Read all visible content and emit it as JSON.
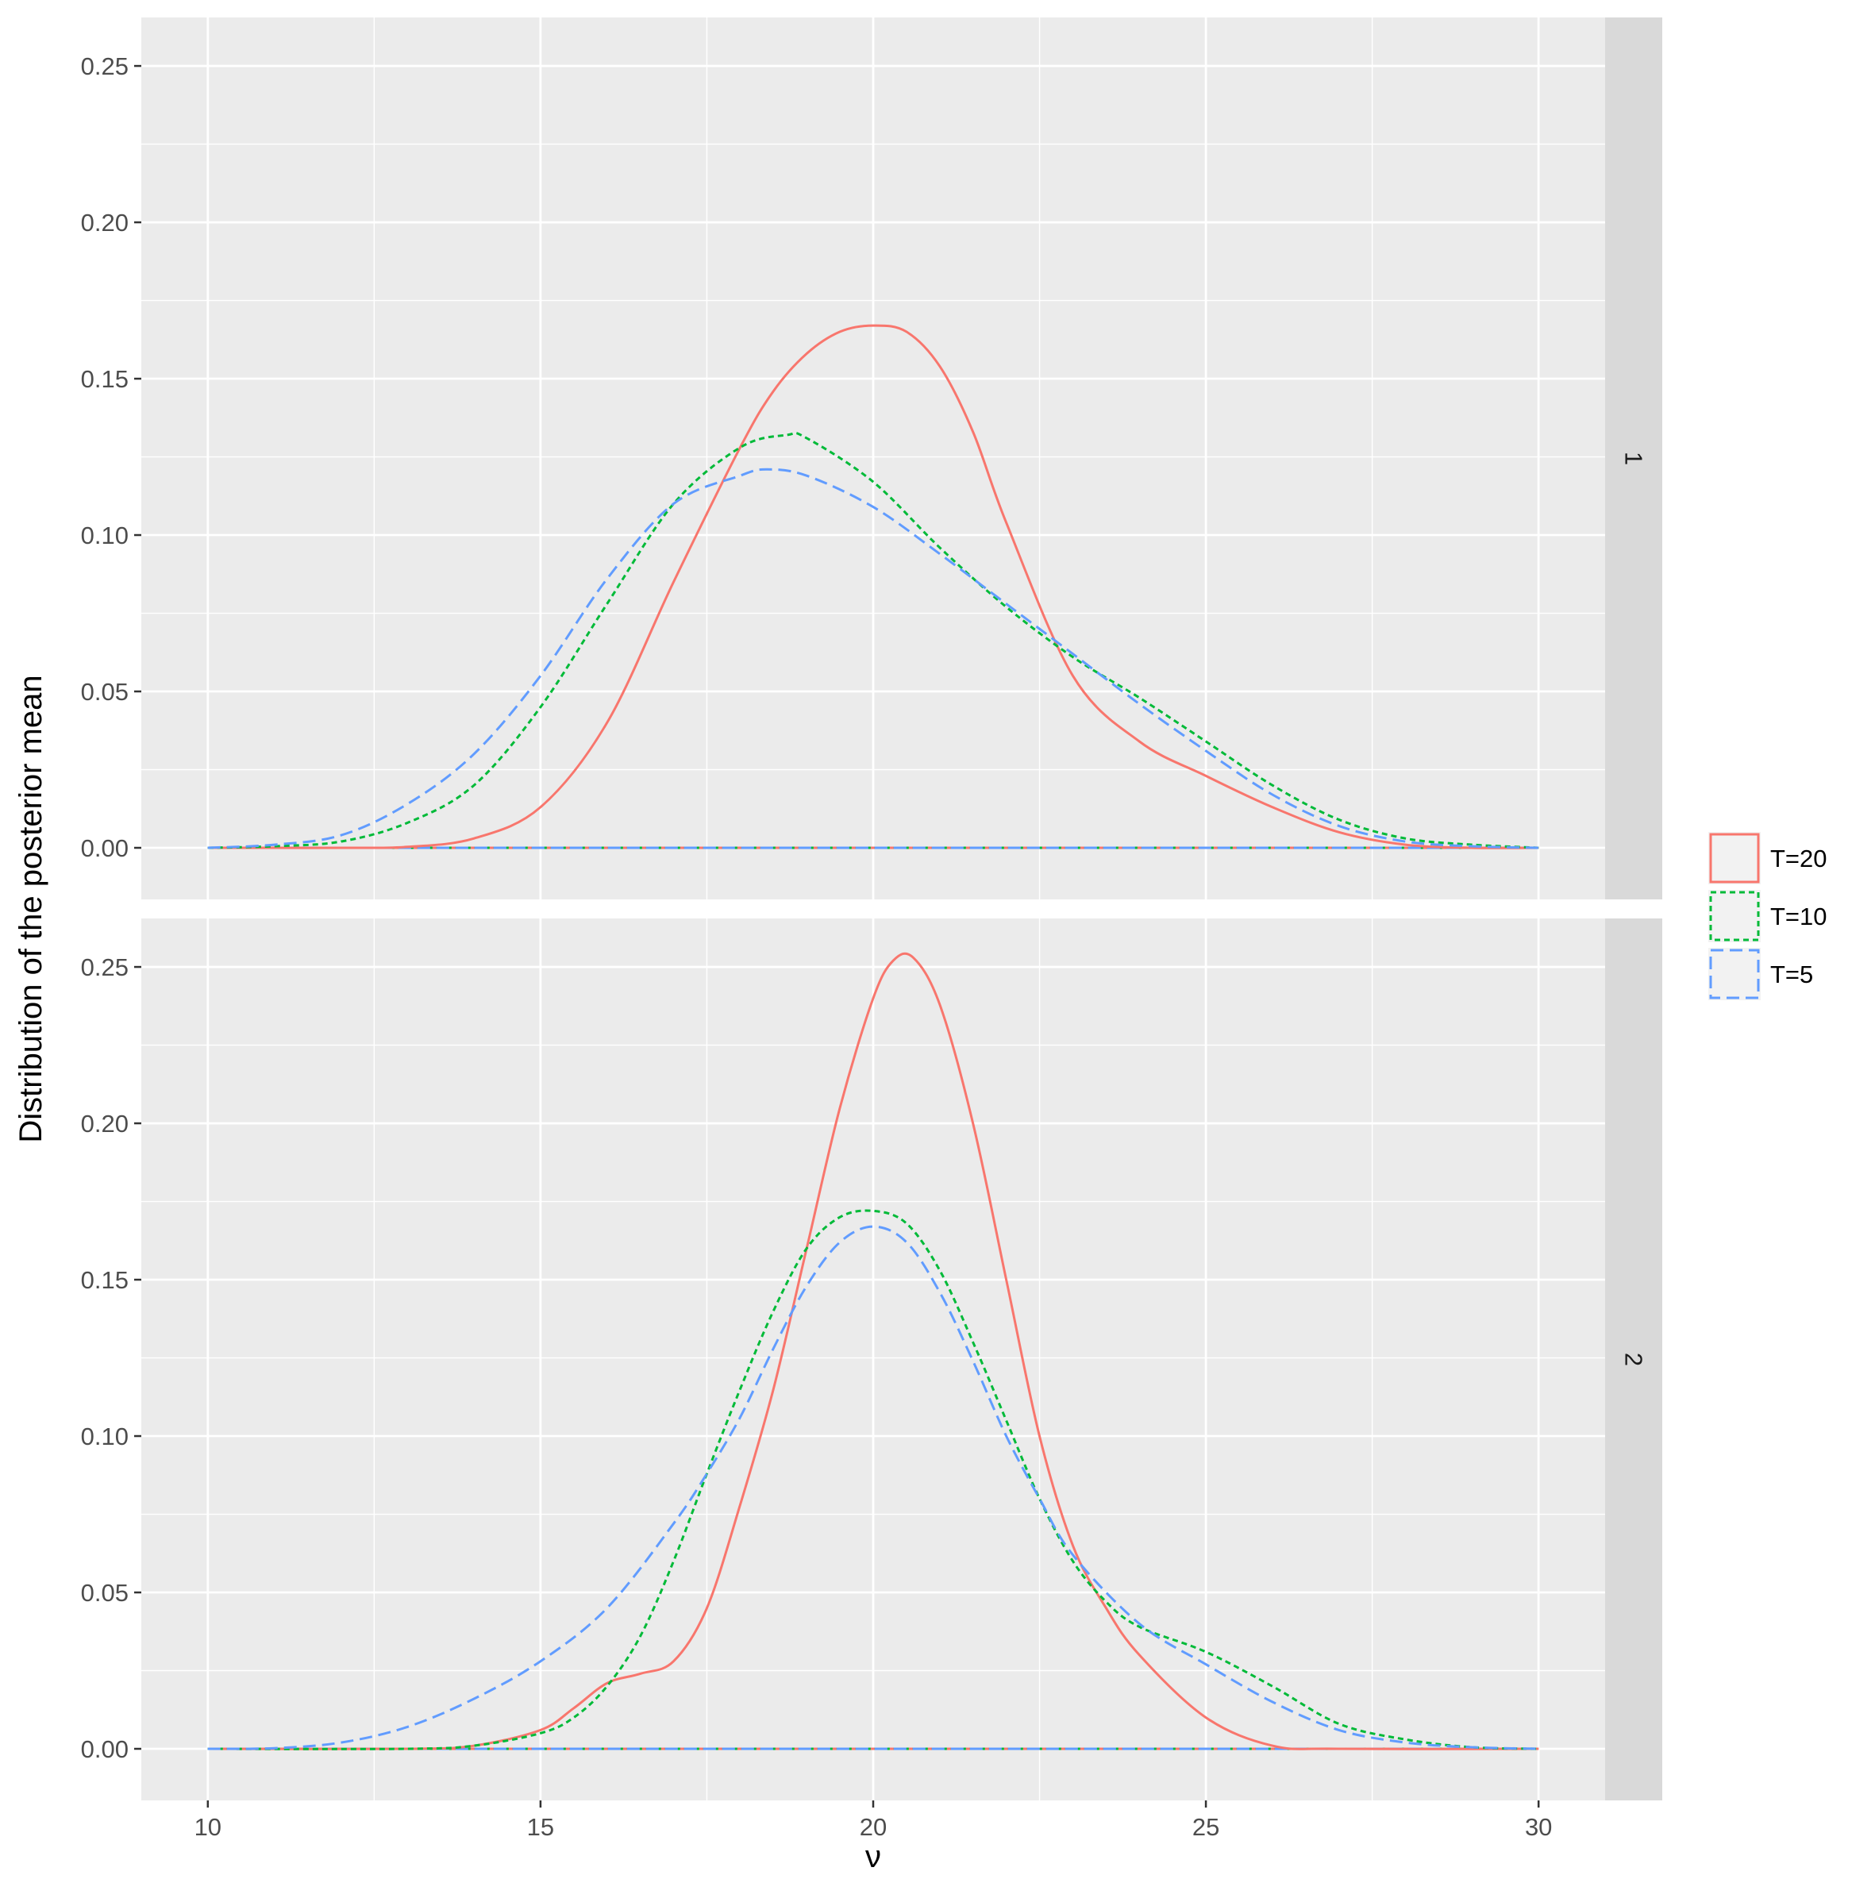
{
  "chart_data": {
    "type": "line",
    "title": "",
    "xlabel": "ν",
    "ylabel": "Distribution of the posterior mean",
    "xlim": [
      9,
      31
    ],
    "ylim": [
      -0.0165,
      0.2655
    ],
    "x_ticks": [
      10,
      15,
      20,
      25,
      30
    ],
    "x_tick_labels": [
      "10",
      "15",
      "20",
      "25",
      "30"
    ],
    "y_ticks": [
      0,
      0.05,
      0.1,
      0.15,
      0.2,
      0.25
    ],
    "y_tick_labels": [
      "0.00",
      "0.05",
      "0.10",
      "0.15",
      "0.20",
      "0.25"
    ],
    "grid": true,
    "legend_position": "right",
    "legend": [
      {
        "label": "T=20",
        "color": "#F8766D",
        "dash": "solid"
      },
      {
        "label": "T=10",
        "color": "#00BA38",
        "dash": "dotted"
      },
      {
        "label": "T=5",
        "color": "#619CFF",
        "dash": "dashed"
      }
    ],
    "panels": [
      {
        "strip_label": "1",
        "series": [
          {
            "name": "T=20",
            "x": [
              10,
              11,
              12,
              13,
              14,
              15,
              16,
              17,
              18,
              18.5,
              19,
              19.5,
              20,
              20.5,
              21,
              21.5,
              22,
              23,
              24,
              25,
              26,
              27,
              28,
              29,
              30
            ],
            "y": [
              0.0,
              0.0,
              0.0,
              0.0003,
              0.003,
              0.013,
              0.04,
              0.085,
              0.128,
              0.146,
              0.158,
              0.165,
              0.167,
              0.165,
              0.154,
              0.133,
              0.104,
              0.055,
              0.034,
              0.023,
              0.013,
              0.005,
              0.001,
              0.0,
              0.0
            ]
          },
          {
            "name": "T=10",
            "x": [
              10,
              11,
              12,
              13,
              14,
              15,
              16,
              17,
              18,
              18.7,
              19,
              20,
              21,
              22,
              23,
              24,
              25,
              26,
              27,
              28,
              29,
              30
            ],
            "y": [
              0.0,
              0.0005,
              0.002,
              0.008,
              0.02,
              0.045,
              0.078,
              0.11,
              0.128,
              0.132,
              0.131,
              0.117,
              0.096,
              0.077,
              0.061,
              0.048,
              0.034,
              0.02,
              0.009,
              0.003,
              0.001,
              0.0
            ]
          },
          {
            "name": "T=5",
            "x": [
              10,
              11,
              12,
              13,
              14,
              15,
              16,
              17,
              18,
              18.4,
              19,
              20,
              21,
              22,
              23,
              24,
              25,
              26,
              27,
              28,
              29,
              30
            ],
            "y": [
              0.0,
              0.001,
              0.004,
              0.014,
              0.03,
              0.055,
              0.086,
              0.11,
              0.119,
              0.121,
              0.119,
              0.109,
              0.094,
              0.078,
              0.062,
              0.046,
              0.031,
              0.017,
              0.007,
              0.002,
              0.0005,
              0.0
            ]
          }
        ]
      },
      {
        "strip_label": "2",
        "series": [
          {
            "name": "T=20",
            "x": [
              10,
              13,
              14,
              15,
              15.5,
              16,
              16.5,
              17,
              17.5,
              18,
              18.5,
              19,
              19.5,
              20,
              20.3,
              20.6,
              21,
              21.5,
              22,
              22.5,
              23,
              23.5,
              24,
              25,
              26,
              27,
              30
            ],
            "y": [
              0.0,
              0.0,
              0.001,
              0.006,
              0.013,
              0.021,
              0.024,
              0.028,
              0.045,
              0.078,
              0.115,
              0.16,
              0.205,
              0.24,
              0.252,
              0.253,
              0.238,
              0.2,
              0.15,
              0.1,
              0.065,
              0.045,
              0.03,
              0.01,
              0.001,
              0.0,
              0.0
            ]
          },
          {
            "name": "T=10",
            "x": [
              10,
              13,
              14,
              15,
              15.5,
              16,
              16.5,
              17,
              17.5,
              18,
              18.5,
              19,
              19.5,
              20,
              20.5,
              21,
              21.5,
              22,
              22.5,
              23,
              23.5,
              24,
              25,
              26,
              27,
              28,
              29,
              30
            ],
            "y": [
              0.0,
              0.0,
              0.001,
              0.005,
              0.01,
              0.02,
              0.036,
              0.06,
              0.088,
              0.115,
              0.14,
              0.16,
              0.17,
              0.172,
              0.168,
              0.153,
              0.13,
              0.105,
              0.08,
              0.06,
              0.047,
              0.039,
              0.031,
              0.02,
              0.008,
              0.003,
              0.0005,
              0.0
            ]
          },
          {
            "name": "T=5",
            "x": [
              10,
              11,
              12,
              13,
              14,
              15,
              16,
              17,
              17.5,
              18,
              18.5,
              19,
              19.5,
              20,
              20.5,
              21,
              21.5,
              22,
              22.5,
              23,
              24,
              25,
              26,
              27,
              28,
              29,
              30
            ],
            "y": [
              0.0,
              0.0002,
              0.002,
              0.007,
              0.016,
              0.028,
              0.045,
              0.072,
              0.088,
              0.106,
              0.128,
              0.148,
              0.162,
              0.167,
              0.162,
              0.146,
              0.124,
              0.1,
              0.08,
              0.062,
              0.04,
              0.027,
              0.015,
              0.006,
              0.002,
              0.0005,
              0.0
            ]
          }
        ]
      }
    ]
  }
}
